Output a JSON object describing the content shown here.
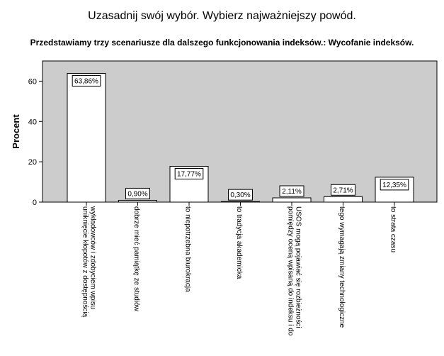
{
  "chart_data": {
    "type": "bar",
    "title": "Uzasadnij swój wybór. Wybierz najważniejszy powód.",
    "subtitle": "Przedstawiamy trzy scenariusze dla dalszego funkcjonowania indeksów.: Wycofanie indeksów.",
    "ylabel": "Procent",
    "xlabel": "",
    "ylim": [
      0,
      70
    ],
    "yticks": [
      0,
      20,
      40,
      60
    ],
    "grid": false,
    "legend": "none",
    "colors": {
      "plot_bg": "#cccccc",
      "bar_fill": "#ffffff",
      "bar_stroke": "#000000"
    },
    "categories": [
      [
        "uniknięcie kłopotów z dostępnością",
        "wykładowców i zdobyciem wpisu"
      ],
      [
        "dobrze mieć pamiątkę ze studiów"
      ],
      [
        "to niepotrzebna biurokracja"
      ],
      [
        "to tradycja akademicka"
      ],
      [
        "pomiędzy oceną wpisaną do indeksu i do",
        "USOS mogą pojawiać się rozbieżności"
      ],
      [
        "tego wymagają zmiany technologiczne"
      ],
      [
        "to strata czasu"
      ]
    ],
    "values": [
      63.86,
      0.9,
      17.77,
      0.3,
      2.11,
      2.71,
      12.35
    ],
    "data_labels": [
      "63,86%",
      "0,90%",
      "17,77%",
      "0,30%",
      "2,11%",
      "2,71%",
      "12,35%"
    ]
  }
}
